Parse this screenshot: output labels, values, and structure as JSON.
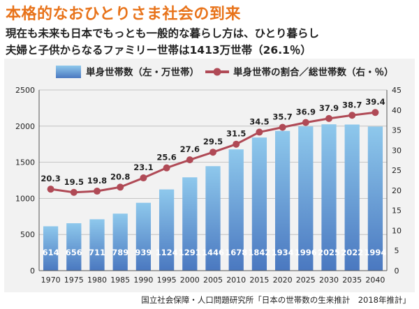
{
  "title": "本格的なおひとりさま社会の到来",
  "subtitle_line1": "現在も未来も日本でもっとも一般的な暮らし方は、ひとり暮らし",
  "subtitle_line2": "夫婦と子供からなるファミリー世帯は1413万世帯（26.1％）",
  "source": "国立社会保障・人口問題研究所「日本の世帯数の生来推計　2018年推計」",
  "colors": {
    "bar_light": "#8ec8ec",
    "bar_dark": "#4a78c0",
    "line": "#b04a56",
    "title": "#e8731a"
  },
  "chart_data": {
    "type": "bar",
    "categories": [
      "1970",
      "1975",
      "1980",
      "1985",
      "1990",
      "1995",
      "2000",
      "2005",
      "2010",
      "2015",
      "2020",
      "2025",
      "2030",
      "2035",
      "2040"
    ],
    "series": [
      {
        "name": "単身世帯数（左・万世帯）",
        "type": "bar",
        "axis": "left",
        "values": [
          614,
          656,
          711,
          789,
          939,
          1124,
          1291,
          1446,
          1678,
          1842,
          1934,
          1996,
          2025,
          2022,
          1994
        ],
        "labels": [
          "614",
          "656",
          "711",
          "789",
          "939",
          "1124",
          "1291",
          "1446",
          "1678",
          "1842",
          "1934",
          "1996",
          "2025",
          "2022",
          "1994"
        ]
      },
      {
        "name": "単身世帯の割合／総世帯数（右・％）",
        "type": "line",
        "axis": "right",
        "values": [
          20.3,
          19.5,
          19.8,
          20.8,
          23.1,
          25.6,
          27.6,
          29.5,
          31.5,
          34.5,
          35.7,
          36.9,
          37.9,
          38.7,
          39.4
        ],
        "labels": [
          "20.3",
          "19.5",
          "19.8",
          "20.8",
          "23.1",
          "25.6",
          "27.6",
          "29.5",
          "31.5",
          "34.5",
          "35.7",
          "36.9",
          "37.9",
          "38.7",
          "39.4"
        ]
      }
    ],
    "y_left": {
      "min": 0,
      "max": 2500,
      "ticks": [
        "0",
        "500",
        "1000",
        "1500",
        "2000",
        "2500"
      ]
    },
    "y_right": {
      "min": 0,
      "max": 45,
      "ticks": [
        "0",
        "5",
        "10",
        "15",
        "20",
        "25",
        "30",
        "35",
        "40",
        "45"
      ]
    },
    "grid": true,
    "legend_position": "top"
  }
}
